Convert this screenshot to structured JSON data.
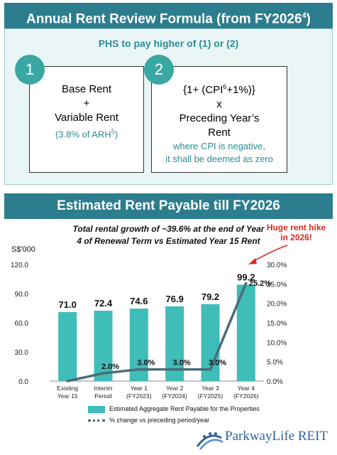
{
  "banner1": {
    "title": "Annual Rent Review Formula (from FY2026",
    "sup": "4",
    "close": ")"
  },
  "formula": {
    "heading": "PHS to pay higher of (1) or (2)",
    "option1": {
      "number": "1",
      "line1": "Base Rent",
      "line2": "+",
      "line3": "Variable Rent",
      "note": "(3.8% of ARH",
      "note_sup": "5",
      "note_close": ")"
    },
    "option2": {
      "number": "2",
      "line1a": "{1+ (CPI",
      "line1_sup": "6",
      "line1b": "+1%)}",
      "line2": "x",
      "line3": "Preceding Year’s",
      "line4": "Rent",
      "note1": "where CPI is negative,",
      "note2": "it shall be deemed as zero"
    }
  },
  "banner2": {
    "title": "Estimated Rent Payable till FY2026"
  },
  "callout": {
    "line1": "Huge rent hike",
    "line2": "in 2026!"
  },
  "logo": {
    "text": "ParkwayLife REIT"
  },
  "colors": {
    "teal_banner": "#2c7d8e",
    "bar": "#3fbdb8",
    "line": "#4b6b7a",
    "callout": "#e0261f"
  },
  "chart_data": {
    "type": "bar",
    "title_line1": "Total rental growth of ~39.6% at the end of Year",
    "title_line2": "4 of Renewal Term vs Estimated Year 15 Rent",
    "ylabel": "S$'000",
    "categories": [
      [
        "Existing",
        "Year 15"
      ],
      [
        "Interim",
        "Period"
      ],
      [
        "Year 1",
        "(FY2023)"
      ],
      [
        "Year 2",
        "(FY2024)"
      ],
      [
        "Year 3",
        "(FY2025)"
      ],
      [
        "Year 4",
        "(FY2026)"
      ]
    ],
    "y_ticks": [
      "0.0",
      "30.0",
      "60.0",
      "90.0",
      "120.0"
    ],
    "ylim": [
      0,
      120
    ],
    "y2_ticks": [
      "0.0%",
      "5.0%",
      "10.0%",
      "15.0%",
      "20.0%",
      "25.0%",
      "30.0%"
    ],
    "y2lim": [
      0,
      30
    ],
    "series": [
      {
        "name": "Estimated Aggregate Rent Payable for the Properties",
        "type": "bar",
        "values": [
          71.0,
          72.4,
          74.6,
          76.9,
          79.2,
          99.2
        ],
        "labels": [
          "71.0",
          "72.4",
          "74.6",
          "76.9",
          "79.2",
          "99.2"
        ]
      },
      {
        "name": "% change vs preceding period/year",
        "type": "line",
        "axis": "right",
        "values": [
          0.0,
          2.0,
          3.0,
          3.0,
          3.0,
          25.2
        ],
        "labels": [
          "",
          "2.0%",
          "3.0%",
          "3.0%",
          "3.0%",
          "25.2%"
        ]
      }
    ],
    "grid": false,
    "legend": "bottom"
  }
}
